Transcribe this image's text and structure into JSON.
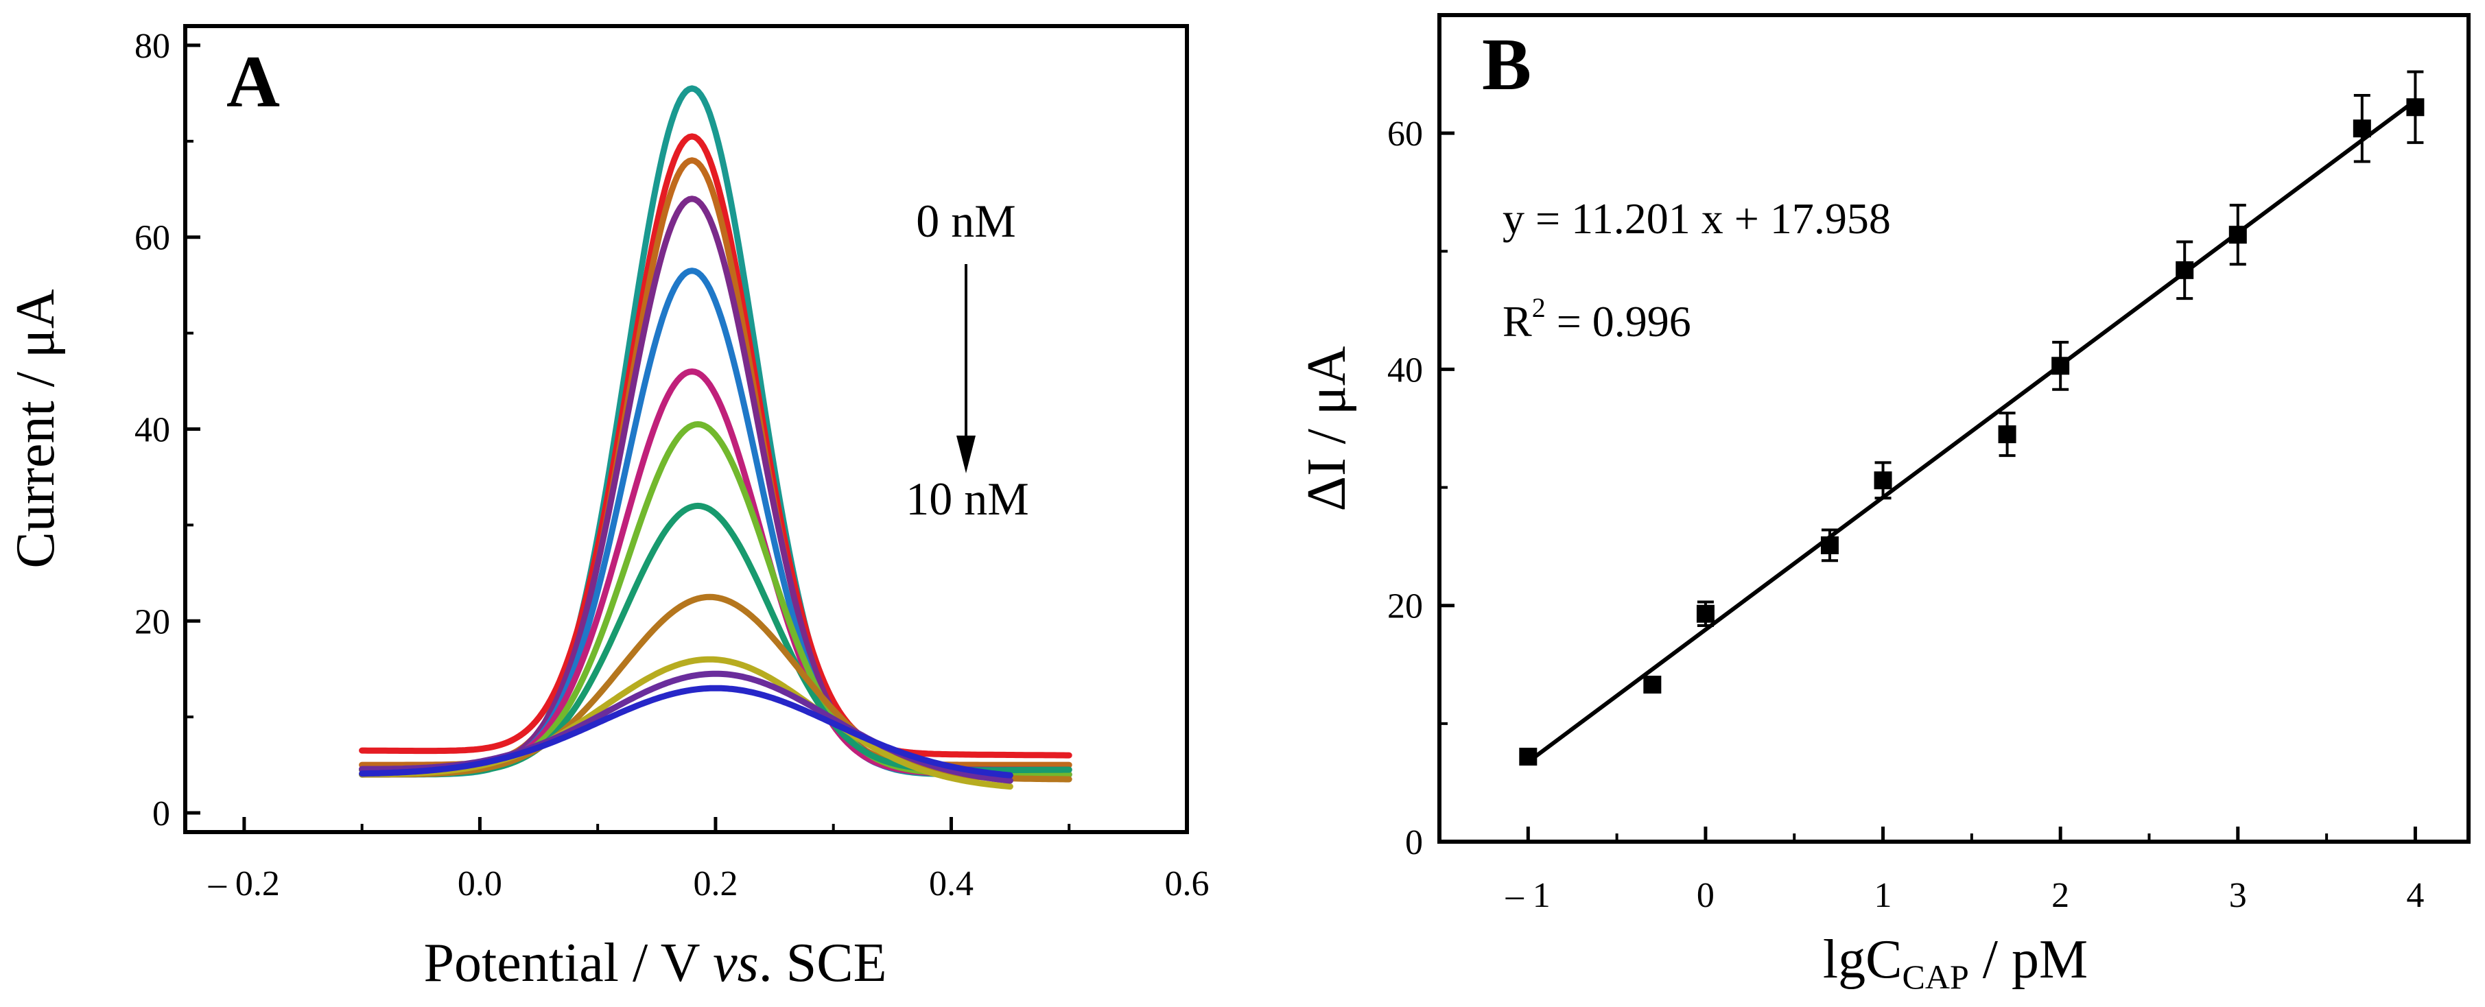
{
  "chart_data": [
    {
      "panel": "A",
      "type": "line",
      "xlabel_main": "Potential / V ",
      "xlabel_italic": "vs",
      "xlabel_tail": ". SCE",
      "ylabel": "Current / μA",
      "xlim": [
        -0.25,
        0.6
      ],
      "ylim": [
        -2,
        82
      ],
      "xticks": [
        -0.2,
        0.0,
        0.2,
        0.4,
        0.6
      ],
      "xtick_labels": [
        "– 0.2",
        "0.0",
        "0.2",
        "0.4",
        "0.6"
      ],
      "yticks": [
        0,
        20,
        40,
        60,
        80
      ],
      "ytick_labels": [
        "0",
        "20",
        "40",
        "60",
        "80"
      ],
      "annotations": {
        "top": "0 nM",
        "bottom": "10 nM"
      },
      "series": [
        {
          "name": "c1",
          "color": "#1a9990",
          "peak": 75.5,
          "center": 0.18,
          "sigma": 0.055,
          "base_left": 4.0,
          "base_right": 4.0,
          "x_range": [
            -0.1,
            0.5
          ]
        },
        {
          "name": "c2",
          "color": "#e51c23",
          "peak": 70.5,
          "center": 0.18,
          "sigma": 0.054,
          "base_left": 6.5,
          "base_right": 6.0,
          "x_range": [
            -0.1,
            0.5
          ]
        },
        {
          "name": "c3",
          "color": "#c06a1c",
          "peak": 68.0,
          "center": 0.18,
          "sigma": 0.054,
          "base_left": 5.0,
          "base_right": 5.0,
          "x_range": [
            -0.1,
            0.5
          ]
        },
        {
          "name": "c4",
          "color": "#7b2a8a",
          "peak": 64.0,
          "center": 0.18,
          "sigma": 0.056,
          "base_left": 4.5,
          "base_right": 4.5,
          "x_range": [
            -0.1,
            0.5
          ]
        },
        {
          "name": "c5",
          "color": "#1f78c8",
          "peak": 56.5,
          "center": 0.18,
          "sigma": 0.056,
          "base_left": 4.5,
          "base_right": 4.0,
          "x_range": [
            -0.1,
            0.5
          ]
        },
        {
          "name": "c6",
          "color": "#c0207a",
          "peak": 46.0,
          "center": 0.18,
          "sigma": 0.058,
          "base_left": 4.5,
          "base_right": 4.0,
          "x_range": [
            -0.1,
            0.5
          ]
        },
        {
          "name": "c7",
          "color": "#72b82d",
          "peak": 40.5,
          "center": 0.185,
          "sigma": 0.06,
          "base_left": 4.5,
          "base_right": 4.0,
          "x_range": [
            -0.1,
            0.5
          ]
        },
        {
          "name": "c8",
          "color": "#189a6e",
          "peak": 32.0,
          "center": 0.185,
          "sigma": 0.062,
          "base_left": 4.0,
          "base_right": 4.5,
          "x_range": [
            -0.1,
            0.5
          ]
        },
        {
          "name": "c9",
          "color": "#b5761d",
          "peak": 22.5,
          "center": 0.195,
          "sigma": 0.075,
          "base_left": 4.0,
          "base_right": 3.5,
          "x_range": [
            -0.1,
            0.5
          ]
        },
        {
          "name": "c10",
          "color": "#b7ac20",
          "peak": 16.0,
          "center": 0.195,
          "sigma": 0.09,
          "base_left": 4.0,
          "base_right": 2.5,
          "x_range": [
            -0.1,
            0.45
          ]
        },
        {
          "name": "c11",
          "color": "#6a2d9c",
          "peak": 14.5,
          "center": 0.2,
          "sigma": 0.095,
          "base_left": 4.5,
          "base_right": 3.0,
          "x_range": [
            -0.1,
            0.45
          ]
        },
        {
          "name": "c12",
          "color": "#2626c8",
          "peak": 13.0,
          "center": 0.2,
          "sigma": 0.1,
          "base_left": 4.0,
          "base_right": 3.5,
          "x_range": [
            -0.1,
            0.45
          ]
        }
      ]
    },
    {
      "panel": "B",
      "type": "scatter",
      "xlabel_main": "lgC",
      "xlabel_sub": "CAP",
      "xlabel_tail": " / pM",
      "ylabel": "ΔI / μA",
      "xlim": [
        -1.5,
        4.3
      ],
      "ylim": [
        0,
        70
      ],
      "xticks": [
        -1,
        0,
        1,
        2,
        3,
        4
      ],
      "xtick_labels": [
        "– 1",
        "0",
        "1",
        "2",
        "3",
        "4"
      ],
      "yticks": [
        0,
        20,
        40,
        60
      ],
      "ytick_labels": [
        "0",
        "20",
        "40",
        "60"
      ],
      "points": [
        {
          "x": -1.0,
          "y": 7.2,
          "err": 0.5
        },
        {
          "x": -0.3,
          "y": 13.3,
          "err": 0.5
        },
        {
          "x": 0.0,
          "y": 19.3,
          "err": 1.0
        },
        {
          "x": 0.7,
          "y": 25.1,
          "err": 1.3
        },
        {
          "x": 1.0,
          "y": 30.6,
          "err": 1.5
        },
        {
          "x": 1.7,
          "y": 34.5,
          "err": 1.8
        },
        {
          "x": 2.0,
          "y": 40.3,
          "err": 2.0
        },
        {
          "x": 2.7,
          "y": 48.4,
          "err": 2.4
        },
        {
          "x": 3.0,
          "y": 51.4,
          "err": 2.5
        },
        {
          "x": 3.7,
          "y": 60.4,
          "err": 2.8
        },
        {
          "x": 4.0,
          "y": 62.2,
          "err": 3.0
        }
      ],
      "fit": {
        "slope": 11.201,
        "intercept": 17.958,
        "x_range": [
          -1.0,
          4.0
        ]
      },
      "equation": "y = 11.201 x + 17.958",
      "r2_prefix": "R",
      "r2_sup": "2",
      "r2_tail": " = 0.996"
    }
  ],
  "panels": {
    "a_letter": "A",
    "b_letter": "B"
  }
}
